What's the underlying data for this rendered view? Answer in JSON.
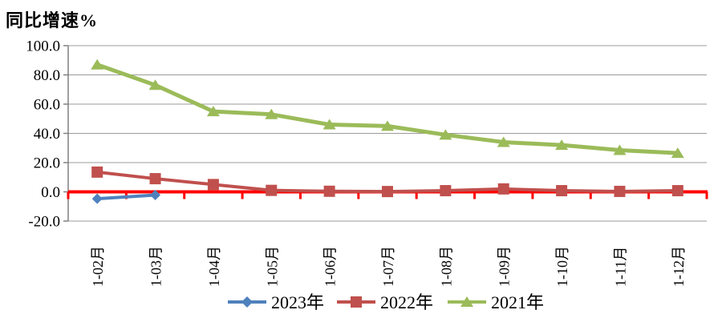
{
  "chart": {
    "title": "同比增速%"
  },
  "chart_data": {
    "type": "line",
    "title": "同比增速%",
    "categories": [
      "1-02月",
      "1-03月",
      "1-04月",
      "1-05月",
      "1-06月",
      "1-07月",
      "1-08月",
      "1-09月",
      "1-10月",
      "1-11月",
      "1-12月"
    ],
    "series": [
      {
        "name": "2023年",
        "color": "#4F81BD",
        "marker": "diamond",
        "values": [
          -4.7,
          -2.2,
          null,
          null,
          null,
          null,
          null,
          null,
          null,
          null,
          null
        ]
      },
      {
        "name": "2022年",
        "color": "#C0504D",
        "marker": "square",
        "values": [
          13.5,
          9.0,
          5.0,
          1.0,
          0.4,
          0.2,
          0.8,
          2.0,
          0.8,
          0.3,
          0.8
        ]
      },
      {
        "name": "2021年",
        "color": "#9BBB59",
        "marker": "triangle",
        "values": [
          87.0,
          73.0,
          55.0,
          53.0,
          46.0,
          45.0,
          39.0,
          34.0,
          32.0,
          28.5,
          26.5
        ]
      }
    ],
    "xlabel": "",
    "ylabel": "同比增速%",
    "ylim": [
      -20,
      100
    ],
    "ytick_step": 20,
    "y_tick_labels": [
      "100.0",
      "80.0",
      "60.0",
      "40.0",
      "20.0",
      "0.0",
      "-20.0"
    ],
    "grid": true,
    "legend_position": "bottom",
    "legend_order": [
      "2023年",
      "2022年",
      "2021年"
    ],
    "colors": {
      "zero_axis_line": "#FF0000",
      "gridline": "#9B9B9B",
      "y_axis_line": "#808080",
      "label_text": "#000000"
    }
  }
}
